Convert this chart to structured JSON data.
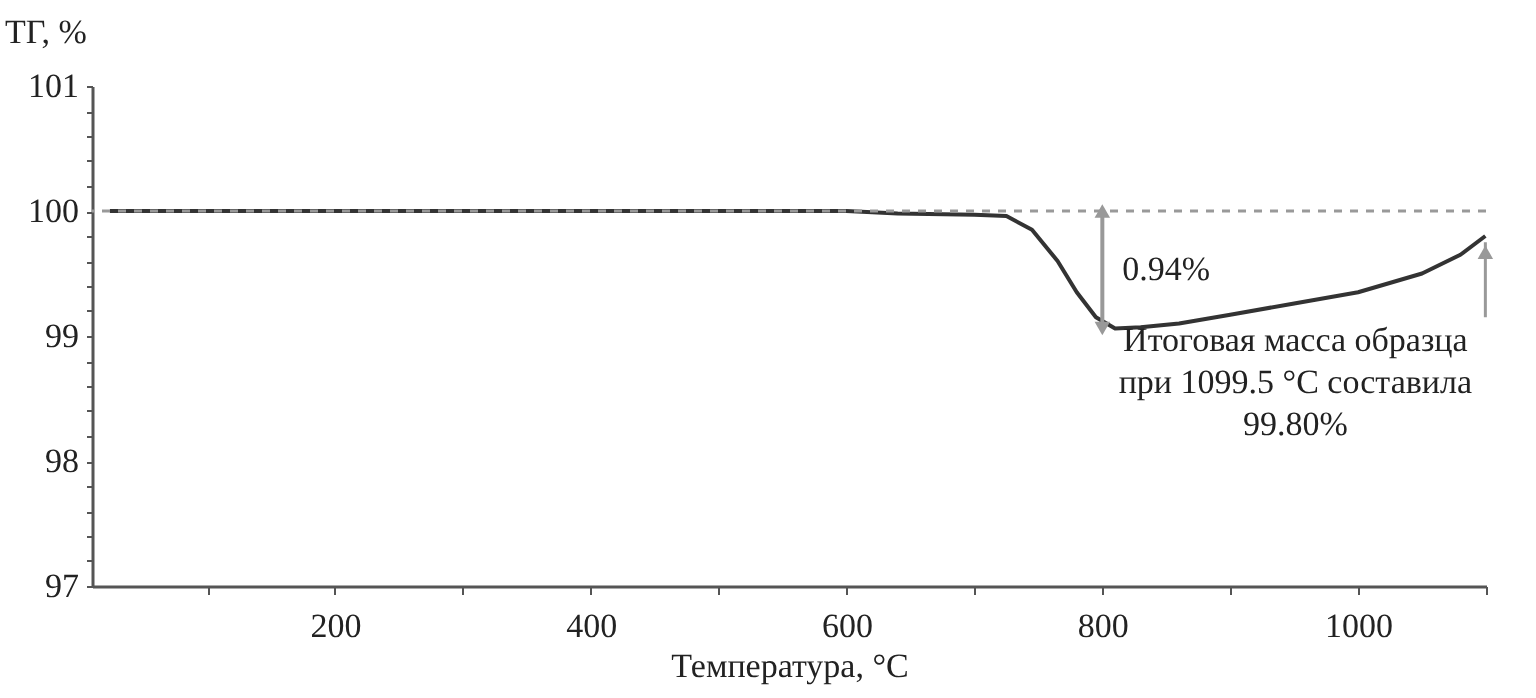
{
  "chart_data": {
    "type": "line",
    "xlabel": "Температура, °C",
    "ylabel": "ТГ, %",
    "x": [
      24,
      600,
      640,
      700,
      725,
      745,
      765,
      780,
      795,
      810,
      830,
      860,
      900,
      950,
      1000,
      1050,
      1080,
      1099.5
    ],
    "series": [
      {
        "color": "#333333",
        "values": [
          100,
          100,
          99.98,
          99.97,
          99.96,
          99.85,
          99.6,
          99.35,
          99.15,
          99.06,
          99.07,
          99.1,
          99.17,
          99.26,
          99.35,
          99.5,
          99.65,
          99.8
        ]
      }
    ],
    "xlim": [
      10,
      1100
    ],
    "xticks": [
      {
        "value": 100,
        "label": null
      },
      200,
      {
        "value": 300,
        "label": null
      },
      400,
      {
        "value": 500,
        "label": null
      },
      600,
      {
        "value": 700,
        "label": null
      },
      800,
      {
        "value": 900,
        "label": null
      },
      1000,
      {
        "value": 1100,
        "label": null
      }
    ],
    "ylim": [
      97,
      101
    ],
    "yticks": [
      97,
      {
        "value": 97.2,
        "label": null
      },
      {
        "value": 97.4,
        "label": null
      },
      {
        "value": 97.6,
        "label": null
      },
      {
        "value": 97.8,
        "label": null
      },
      98,
      {
        "value": 98.2,
        "label": null
      },
      {
        "value": 98.4,
        "label": null
      },
      {
        "value": 98.6,
        "label": null
      },
      {
        "value": 98.8,
        "label": null
      },
      99,
      {
        "value": 99.2,
        "label": null
      },
      {
        "value": 99.4,
        "label": null
      },
      {
        "value": 99.6,
        "label": null
      },
      {
        "value": 99.8,
        "label": null
      },
      100,
      {
        "value": 100.2,
        "label": null
      },
      {
        "value": 100.4,
        "label": null
      },
      {
        "value": 100.6,
        "label": null
      },
      {
        "value": 100.8,
        "label": null
      },
      101
    ],
    "ref_lines": [
      {
        "axis": "y",
        "value": 100,
        "color": "#999999",
        "line_style": "dashed"
      }
    ],
    "annotations": [
      {
        "text": "0.94%",
        "x": 800,
        "y": 99.06
      },
      {
        "text": "Итоговая масса образца при 1099.5 °C составила 99.80%",
        "x": 1099.5,
        "y": 99.8
      }
    ],
    "grid": false,
    "marker": "none",
    "line_style": "solid"
  }
}
